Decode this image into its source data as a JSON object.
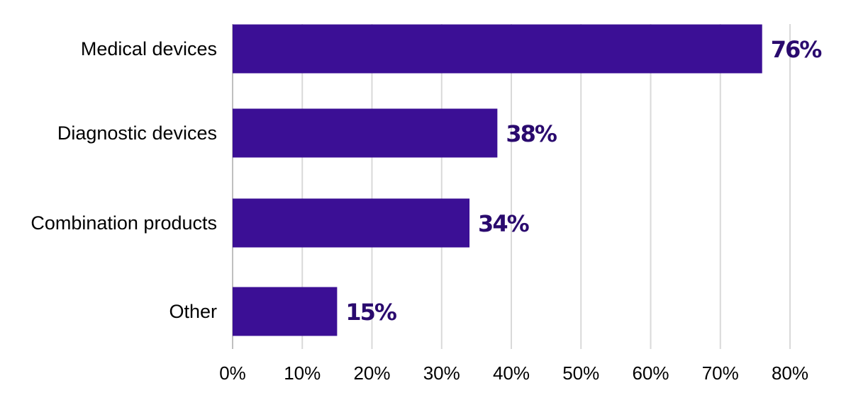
{
  "chart_data": {
    "type": "bar",
    "orientation": "horizontal",
    "categories": [
      "Medical devices",
      "Diagnostic devices",
      "Combination products",
      "Other"
    ],
    "values": [
      76,
      38,
      34,
      15
    ],
    "value_labels": [
      "76%",
      "38%",
      "34%",
      "15%"
    ],
    "xlim": [
      0,
      80
    ],
    "x_ticks": [
      0,
      10,
      20,
      30,
      40,
      50,
      60,
      70,
      80
    ],
    "x_tick_labels": [
      "0%",
      "10%",
      "20%",
      "30%",
      "40%",
      "50%",
      "60%",
      "70%",
      "80%"
    ],
    "title": "",
    "xlabel": "",
    "ylabel": "",
    "grid": "vertical",
    "legend": "none",
    "colors": {
      "bar": "#3b0f95",
      "value_label": "#2a0a6e",
      "grid": "#d9d9d9",
      "axis": "#bfbfbf"
    }
  }
}
